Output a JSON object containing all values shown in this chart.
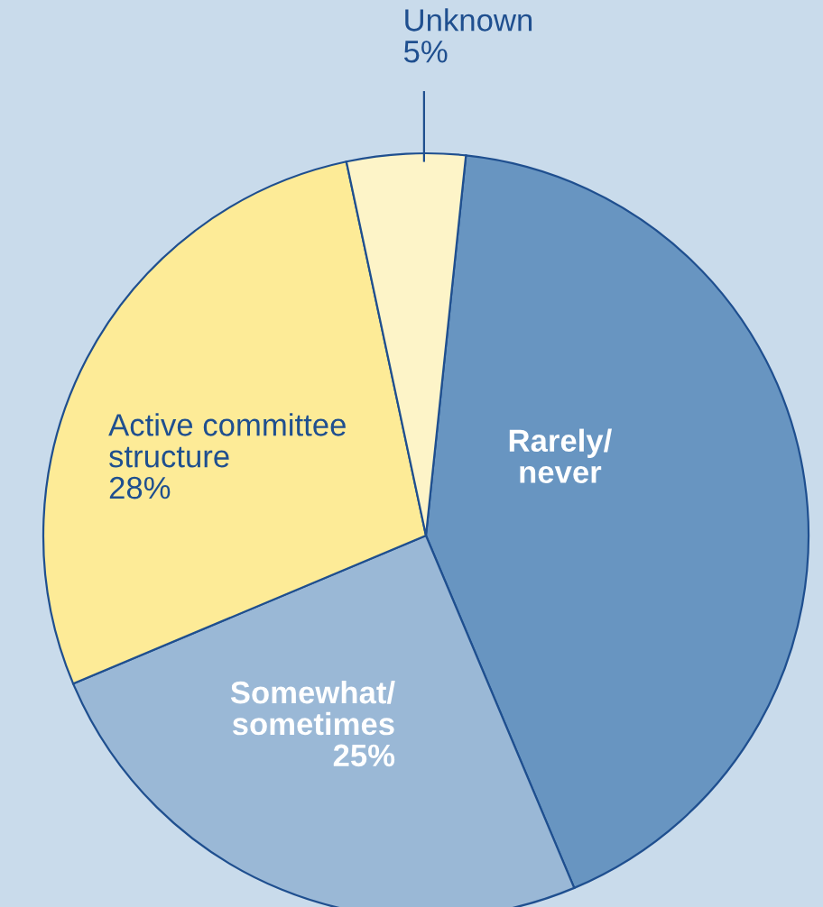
{
  "chart_data": {
    "type": "pie",
    "categories": [
      "Rarely/\nnever",
      "Somewhat/\nsometimes",
      "Active committee\nstructure",
      "Unknown"
    ],
    "values": [
      42,
      25,
      28,
      5
    ],
    "value_labels": [
      null,
      "25%",
      "28%",
      "5%"
    ],
    "colors": [
      "#6895c1",
      "#9ab8d6",
      "#fdeb97",
      "#fdf4c8"
    ]
  }
}
